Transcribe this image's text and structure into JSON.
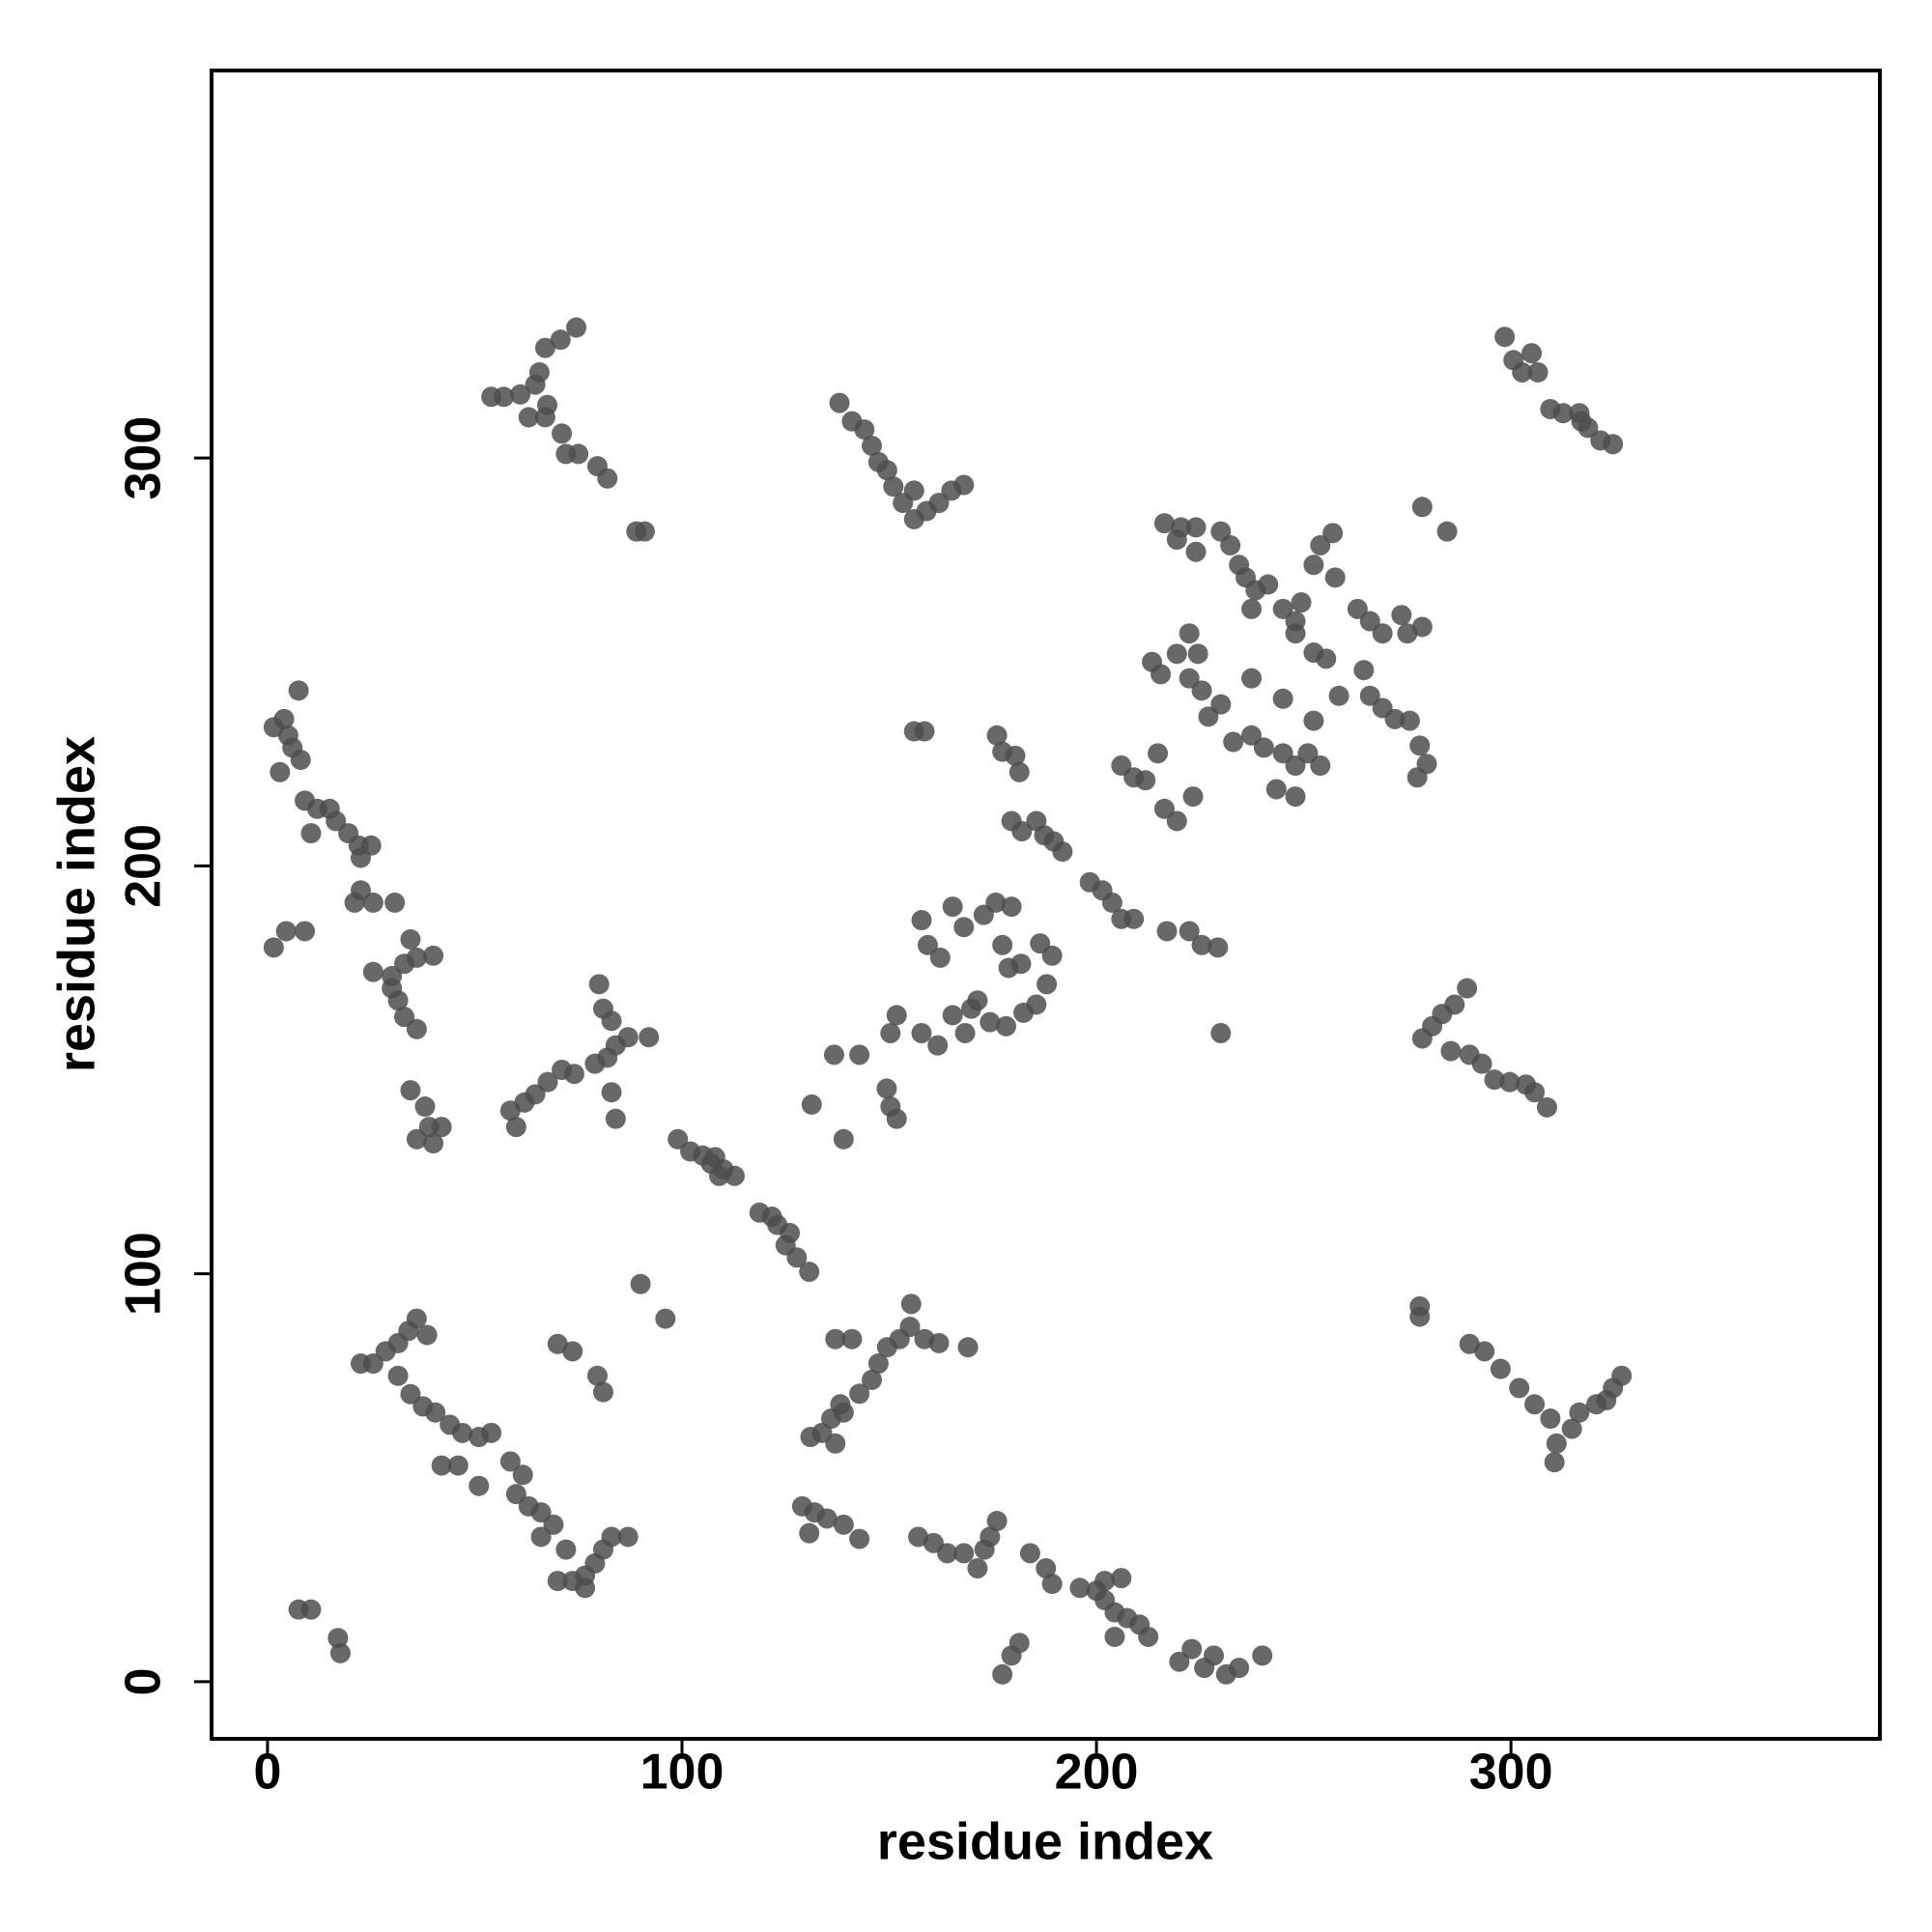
{
  "chart_data": {
    "type": "scatter",
    "xlabel": "residue index",
    "ylabel": "residue index",
    "xlim": [
      -13.5,
      389
    ],
    "ylim": [
      -14,
      395
    ],
    "xticks": [
      0,
      100,
      200,
      300
    ],
    "yticks": [
      0,
      100,
      200,
      300
    ],
    "grid": false,
    "color": "#4d4d4d",
    "x": [
      7.5,
      10.5,
      17,
      17.6,
      1.5,
      4,
      6,
      8,
      7.5,
      3,
      5,
      9,
      12,
      15,
      16.5,
      19.5,
      22,
      25,
      22.5,
      10.5,
      22.5,
      21,
      25.5,
      30.7,
      1.5,
      4.5,
      9,
      25.5,
      30,
      33,
      36,
      40,
      34.5,
      31.5,
      33,
      36,
      30,
      34.5,
      38,
      36,
      40,
      42,
      39,
      22.5,
      25.5,
      28.5,
      31.5,
      34,
      36,
      38.5,
      31.5,
      34.5,
      37.5,
      40.5,
      44,
      47,
      51,
      54,
      51,
      42,
      46,
      58.6,
      61.6,
      60,
      63,
      66,
      69,
      66,
      72,
      73.6,
      76.6,
      79,
      81,
      83,
      87,
      76.6,
      70,
      70,
      73.6,
      79.6,
      81,
      90,
      96,
      54,
      57,
      61,
      64.6,
      65.6,
      67,
      70.7,
      74.5,
      63,
      67,
      67.5,
      71,
      72,
      75,
      79.6,
      82,
      89,
      91,
      58.6,
      60,
      62,
      64.6,
      67.6,
      71,
      74,
      79,
      82,
      84,
      87,
      92,
      80,
      81,
      83,
      83,
      84,
      99,
      102,
      105,
      108,
      110,
      112.7,
      109,
      107,
      118.7,
      121.7,
      123,
      126,
      125,
      127.7,
      130.7,
      131,
      133.8,
      136,
      139,
      142.8,
      145.8,
      147.4,
      149.5,
      152.5,
      155,
      155.3,
      158.5,
      162,
      169,
      137,
      141,
      137,
      138.2,
      129,
      132,
      135,
      139,
      142.8,
      130.7,
      157,
      160.7,
      164,
      168,
      171.3,
      173,
      174.3,
      176,
      184,
      187.8,
      189.3,
      196,
      200,
      202,
      204.4,
      207.4,
      210.4,
      212.5,
      204.4,
      206,
      202,
      177.3,
      179.5,
      181.4,
      220,
      223,
      226,
      228.3,
      231.3,
      234.4,
      240,
      138,
      141,
      144,
      145.8,
      147.4,
      149.5,
      151,
      153.3,
      156,
      159,
      162,
      165,
      168,
      156,
      156,
      158.5,
      176,
      177.3,
      180.4,
      181.4,
      179.5,
      182,
      185.5,
      187.4,
      189.7,
      191.8,
      198.4,
      201.4,
      203.8,
      206,
      209,
      157.8,
      159.3,
      162.3,
      165.3,
      168,
      172.8,
      175.7,
      179.5,
      177.3,
      178.8,
      181.8,
      186.4,
      189.3,
      188,
      185.5,
      182.4,
      178.2,
      174.3,
      171.3,
      169.8,
      165.3,
      168.3,
      161.7,
      151.8,
      150.3,
      157.8,
      136.7,
      142.8,
      149.4,
      150.3,
      151.8,
      131.3,
      139,
      216.4,
      220.4,
      224,
      219.4,
      224,
      230,
      232.3,
      234.4,
      236,
      238.4,
      241.4,
      237.4,
      245,
      248,
      249.4,
      252.4,
      254,
      257,
      257.6,
      255.4,
      252.4,
      248,
      263,
      266,
      269,
      273.6,
      275,
      278.6,
      264.5,
      266,
      269,
      272,
      275.6,
      278,
      279.7,
      277.4,
      258.5,
      252.4,
      213.4,
      215.5,
      219.4,
      222.4,
      224.5,
      222.4,
      225.4,
      227,
      230,
      233,
      237.4,
      240.4,
      245,
      248,
      251,
      254,
      243.4,
      248,
      237.4,
      245,
      206,
      209,
      211.8,
      214.8,
      216.4,
      219.4,
      223.3,
      217,
      222.4,
      225.4,
      229.3,
      230,
      278.6,
      284.6,
      298.5,
      300.6,
      302.7,
      305,
      306.5,
      309.5,
      312.6,
      316.5,
      318.6,
      321.6,
      324.6,
      317,
      278.6,
      281,
      283.4,
      286.4,
      289.4,
      285.5,
      290,
      293,
      296,
      299.7,
      303.6,
      305.7,
      308.7,
      278,
      278,
      290,
      293.6,
      297.5,
      302,
      305.7,
      309.5,
      311,
      310.5,
      314.7,
      316.5,
      320.6,
      324.6,
      326.7,
      323
    ],
    "values": [
      17.7,
      17.7,
      10.7,
      7,
      234,
      236,
      229,
      226,
      243,
      223,
      232,
      216,
      214,
      214,
      211,
      208,
      205,
      205,
      202,
      208,
      194,
      191,
      191,
      191,
      180,
      184,
      184,
      174,
      173,
      176,
      177.5,
      178,
      182,
      167,
      163,
      160,
      170,
      145,
      141,
      133,
      132,
      136,
      136,
      78,
      78,
      81,
      83,
      86,
      89,
      85,
      75,
      70.5,
      67.5,
      66,
      63,
      61,
      60,
      61,
      48,
      53,
      53,
      54,
      50.7,
      46,
      43,
      41.5,
      38.5,
      35.5,
      32.4,
      24.7,
      26,
      29,
      32.4,
      35.5,
      35.5,
      23,
      24.7,
      82.8,
      81,
      75,
      71,
      97.5,
      89,
      315,
      315,
      315.6,
      318,
      321,
      327,
      329,
      332,
      310,
      310,
      313,
      306,
      301,
      301,
      298,
      295,
      282,
      282,
      140,
      136,
      142,
      144,
      147,
      150,
      149,
      151.5,
      153,
      156,
      158,
      158,
      171,
      165,
      162,
      144.5,
      138,
      133,
      130,
      129,
      128.6,
      125.6,
      124,
      124,
      127,
      115,
      114,
      112,
      110,
      107,
      104,
      100.5,
      60,
      61,
      64.5,
      66,
      70.6,
      74,
      78,
      82,
      84,
      87,
      92.6,
      84,
      83,
      82,
      84,
      84,
      58.4,
      68,
      43,
      41.5,
      40,
      38.5,
      35,
      36.4,
      35.5,
      34,
      31.5,
      31.5,
      27.8,
      32.4,
      35.5,
      39.4,
      31.5,
      27.8,
      24,
      23,
      22.3,
      20,
      17,
      15.6,
      14,
      11,
      11,
      25.4,
      24.7,
      1.8,
      6.4,
      9.5,
      4.9,
      8,
      3.4,
      6.4,
      1.8,
      3.4,
      6.4,
      313.5,
      309,
      307,
      303,
      299,
      297,
      293,
      289,
      285,
      287,
      289,
      292,
      293.4,
      292,
      233,
      233,
      232,
      228,
      227,
      223,
      211,
      208.5,
      211,
      207.5,
      206,
      203.5,
      196,
      194,
      191,
      187,
      187,
      186.7,
      180.6,
      177.5,
      190,
      185,
      188,
      191,
      190,
      180.6,
      175,
      176,
      181,
      178,
      171,
      166,
      164,
      160.7,
      161.7,
      167,
      165,
      163.4,
      159,
      156,
      163.4,
      159,
      159,
      153.7,
      153.7,
      145.4,
      141,
      138,
      141.5,
      133,
      284,
      283,
      283,
      280,
      277,
      282,
      278.6,
      273.8,
      270.7,
      267.6,
      269,
      263,
      263,
      260,
      264.6,
      273.8,
      278.6,
      281.6,
      270.7,
      250.8,
      252.3,
      257,
      263,
      260,
      257,
      261.5,
      257,
      258.6,
      248,
      241.7,
      238.7,
      236,
      235.6,
      229.5,
      225,
      221.7,
      241.7,
      235.6,
      250,
      247,
      252,
      257,
      252,
      246,
      243,
      236.6,
      239.6,
      230.4,
      232,
      229,
      227.6,
      224.6,
      227.6,
      224.6,
      218.8,
      217,
      246,
      241,
      224.6,
      221.7,
      221,
      227.6,
      214,
      211,
      217,
      184,
      184,
      180.6,
      180,
      159,
      288,
      282,
      329.7,
      324,
      321,
      325.7,
      321,
      312,
      311,
      311,
      307.4,
      304.3,
      303.4,
      309,
      157.7,
      160.7,
      163.7,
      166,
      170,
      154.6,
      153.7,
      151.5,
      147.6,
      147,
      146.4,
      144.5,
      140.8,
      92,
      89.5,
      82.8,
      81,
      76.7,
      72,
      68,
      64.5,
      58.4,
      53.8,
      62,
      66,
      68,
      72,
      75,
      69
    ]
  }
}
